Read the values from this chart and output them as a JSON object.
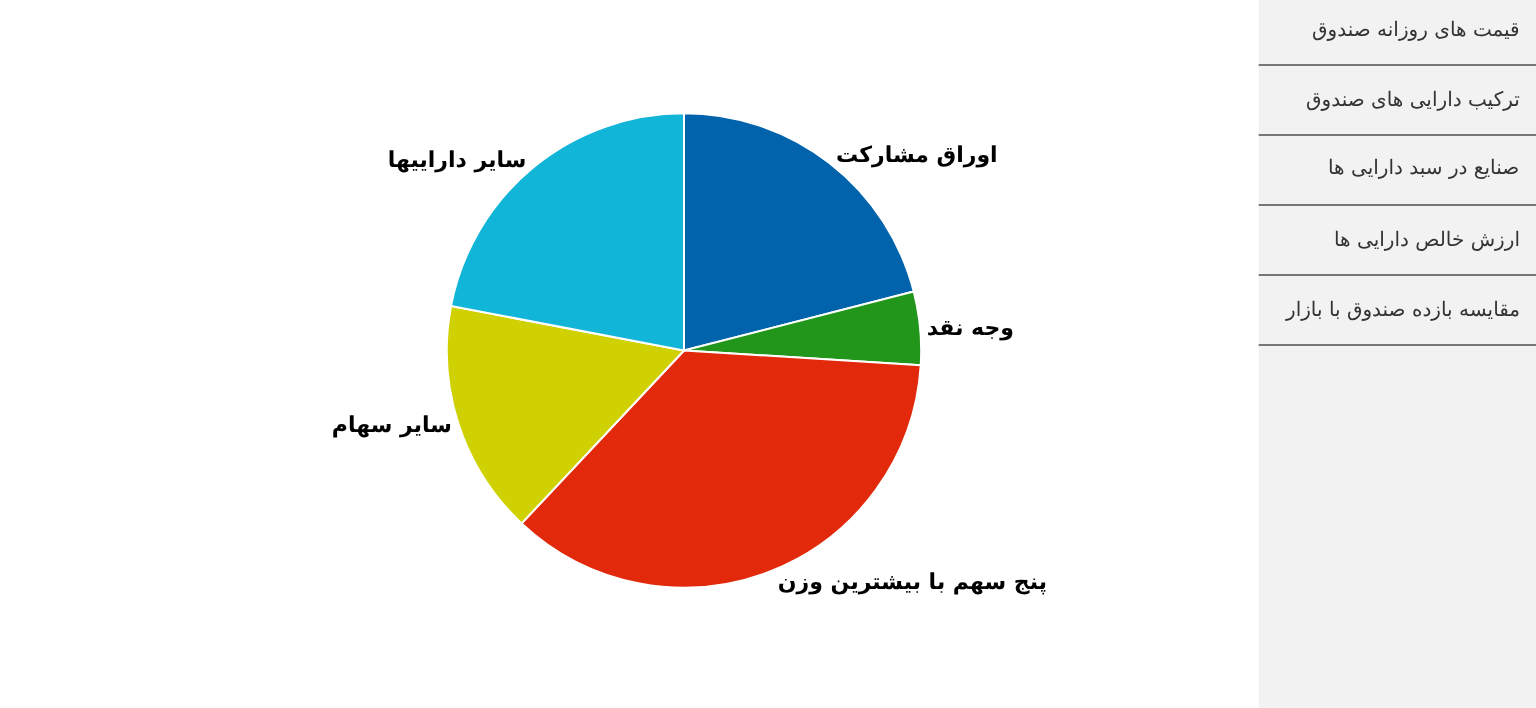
{
  "chart_data": [
    {
      "type": "pie",
      "categories": [
        "اوراق مشارکت",
        "وجه نقد",
        "پنج سهم با بیشترین وزن",
        "سایر سهام",
        "سایر داراییها"
      ],
      "values": [
        21,
        5,
        36,
        16,
        22
      ],
      "colors": [
        "#0263ad",
        "#22961a",
        "#e2290b",
        "#cfd102",
        "#10b5d8"
      ]
    },
    {
      "type": "other",
      "annotations": [
        "قیمت های روزانه صندوق",
        "ترکیب دارایی های صندوق",
        "صنایع در سبد دارایی ها",
        "ارزش خالص دارایی ها",
        "مقایسه بازده صندوق با بازار"
      ]
    }
  ]
}
